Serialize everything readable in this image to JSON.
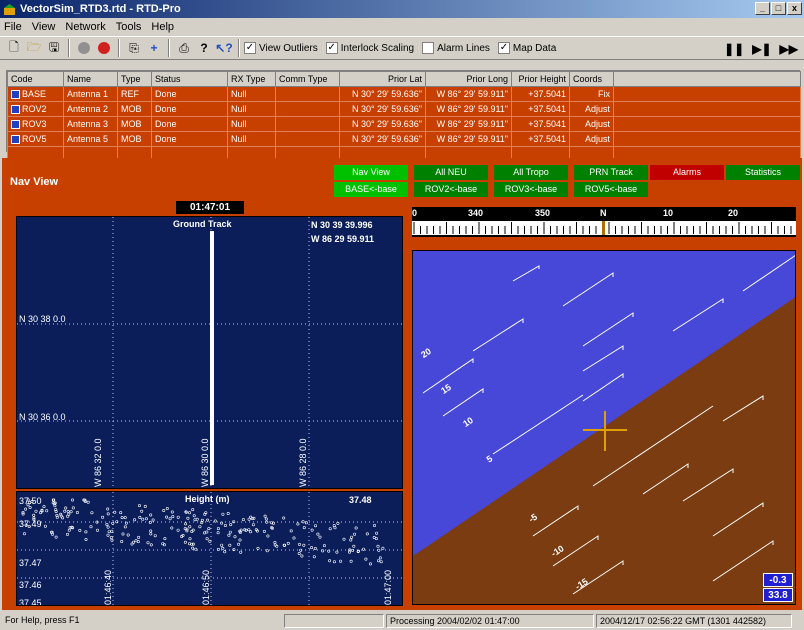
{
  "title": "VectorSim_RTD3.rtd - RTD-Pro",
  "menu": [
    "File",
    "View",
    "Network",
    "Tools",
    "Help"
  ],
  "toolbar": {
    "checks": [
      {
        "label": "View Outliers",
        "checked": true
      },
      {
        "label": "Interlock Scaling",
        "checked": true
      },
      {
        "label": "Alarm Lines",
        "checked": false
      },
      {
        "label": "Map Data",
        "checked": true
      }
    ]
  },
  "table": {
    "headers": [
      "Code",
      "Name",
      "Type",
      "Status",
      "RX Type",
      "Comm Type",
      "Prior Lat",
      "Prior Long",
      "Prior Height",
      "Coords"
    ],
    "rows": [
      [
        "BASE",
        "Antenna 1",
        "REF",
        "Done",
        "Null",
        "",
        "N 30° 29' 59.636\"",
        "W 86° 29' 59.911\"",
        "+37.5041",
        "Fix"
      ],
      [
        "ROV2",
        "Antenna 2",
        "MOB",
        "Done",
        "Null",
        "",
        "N 30° 29' 59.636\"",
        "W 86° 29' 59.911\"",
        "+37.5041",
        "Adjust"
      ],
      [
        "ROV3",
        "Antenna 3",
        "MOB",
        "Done",
        "Null",
        "",
        "N 30° 29' 59.636\"",
        "W 86° 29' 59.911\"",
        "+37.5041",
        "Adjust"
      ],
      [
        "ROV5",
        "Antenna 5",
        "MOB",
        "Done",
        "Null",
        "",
        "N 30° 29' 59.636\"",
        "W 86° 29' 59.911\"",
        "+37.5041",
        "Adjust"
      ]
    ]
  },
  "nav": {
    "title": "Nav View",
    "time": "01:47:01",
    "buttons_row1": [
      {
        "label": "Nav View",
        "color": "#00c000"
      },
      {
        "label": "All NEU",
        "color": "#008000"
      },
      {
        "label": "All Tropo",
        "color": "#008000"
      },
      {
        "label": "PRN Track",
        "color": "#008000"
      },
      {
        "label": "Alarms",
        "color": "#c00000"
      },
      {
        "label": "Statistics",
        "color": "#008000"
      }
    ],
    "buttons_row2": [
      {
        "label": "BASE<-base",
        "color": "#00c000"
      },
      {
        "label": "ROV2<-base",
        "color": "#008000"
      },
      {
        "label": "ROV3<-base",
        "color": "#008000"
      },
      {
        "label": "ROV5<-base",
        "color": "#008000"
      }
    ],
    "ground_track": {
      "title": "Ground Track",
      "lat": "N 30 39 39.996",
      "lon": "W 86 29 59.911",
      "ylabels": [
        "N 30 38 0.0",
        "N 30 36 0.0"
      ],
      "xlabels": [
        "W 86 32 0.0",
        "W 86 30 0.0",
        "W 86 28 0.0"
      ]
    },
    "height": {
      "title": "Height (m)",
      "value": "37.48",
      "ylabels": [
        "37.50",
        "37.49",
        "37.47",
        "37.46",
        "37.45"
      ],
      "xlabels": [
        "01:46:40",
        "01:46:50",
        "01:47:00"
      ]
    },
    "compass": [
      "0",
      "340",
      "350",
      "N",
      "10",
      "20"
    ],
    "horizon": {
      "pitch_up": [
        "20",
        "15",
        "10",
        "5"
      ],
      "pitch_down": [
        "-5",
        "-10",
        "-15"
      ],
      "readout1": "-0.3",
      "readout2": "33.8",
      "sky_color": "#4848d8",
      "ground_color": "#7a3c10"
    }
  },
  "status": {
    "help": "For Help, press F1",
    "processing": "Processing 2004/02/02 01:47:00",
    "clock": "2004/12/17 02:56:22 GMT (1301 442582)"
  }
}
